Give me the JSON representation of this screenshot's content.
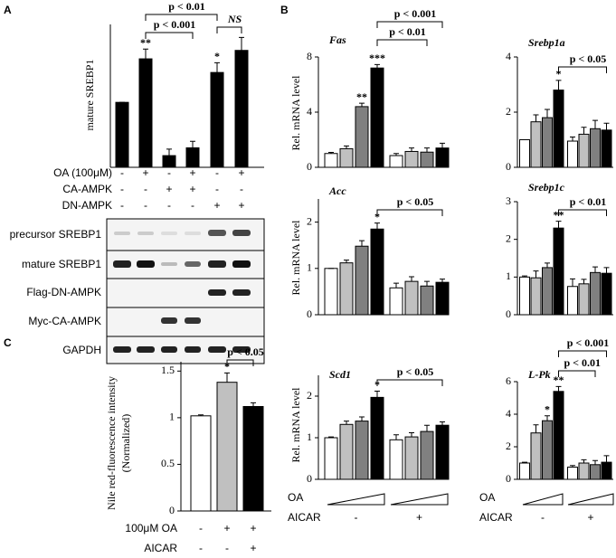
{
  "chart_data": [
    {
      "panel": "A",
      "type": "bar",
      "y_label": "mature SREBP1",
      "categories": [
        null,
        null,
        null,
        null,
        null,
        null
      ],
      "values": [
        1,
        1.67,
        0.18,
        0.3,
        1.46,
        1.8
      ],
      "errors": [
        0,
        0.15,
        0.1,
        0.1,
        0.15,
        0.2
      ],
      "color": "#000000",
      "ylim": [
        0,
        2.2
      ],
      "annotations": [
        "**",
        "*",
        "p < 0.001",
        "p < 0.01",
        "NS"
      ],
      "treatments": [
        {
          "label": "OA (100μM)",
          "signs": [
            "-",
            "+",
            "-",
            "+",
            "-",
            "+"
          ]
        },
        {
          "label": "CA-AMPK",
          "signs": [
            "-",
            "-",
            "+",
            "+",
            "-",
            "-"
          ]
        },
        {
          "label": "DN-AMPK",
          "signs": [
            "-",
            "-",
            "-",
            "-",
            "+",
            "+"
          ]
        }
      ],
      "blot_labels": [
        "precursor SREBP1",
        "mature SREBP1",
        "Flag-DN-AMPK",
        "Myc-CA-AMPK",
        "GAPDH"
      ]
    },
    {
      "panel": "B",
      "type": "bar",
      "title": "Fas",
      "y_label": "Rel. mRNA level",
      "categories": [
        null,
        null,
        null,
        null,
        null,
        null,
        null,
        null
      ],
      "values": [
        1,
        1.35,
        4.4,
        7.2,
        0.85,
        1.15,
        1.1,
        1.4
      ],
      "errors": [
        0.08,
        0.2,
        0.25,
        0.25,
        0.15,
        0.25,
        0.3,
        0.35
      ],
      "colors": [
        "#ffffff",
        "#c0c0c0",
        "#808080",
        "#000000",
        "#ffffff",
        "#c0c0c0",
        "#808080",
        "#000000"
      ],
      "ylim": [
        0,
        8
      ],
      "yticks": [
        0,
        4,
        8
      ],
      "annotations": [
        "**",
        "***",
        "p < 0.01",
        "p < 0.001"
      ]
    },
    {
      "type": "bar",
      "title": "Srebp1a",
      "categories": [
        null,
        null,
        null,
        null,
        null,
        null,
        null,
        null
      ],
      "values": [
        1,
        1.65,
        1.8,
        2.8,
        0.95,
        1.2,
        1.4,
        1.35
      ],
      "errors": [
        0,
        0.25,
        0.3,
        0.35,
        0.15,
        0.25,
        0.3,
        0.25
      ],
      "colors": [
        "#ffffff",
        "#c0c0c0",
        "#808080",
        "#000000",
        "#ffffff",
        "#c0c0c0",
        "#808080",
        "#000000"
      ],
      "ylim": [
        0,
        4
      ],
      "yticks": [
        0,
        2,
        4
      ],
      "annotations": [
        "*",
        "p < 0.05"
      ]
    },
    {
      "type": "bar",
      "title": "Acc",
      "y_label": "Rel. mRNA level",
      "categories": [
        null,
        null,
        null,
        null,
        null,
        null,
        null,
        null
      ],
      "values": [
        1,
        1.12,
        1.48,
        1.85,
        0.58,
        0.72,
        0.62,
        0.7
      ],
      "errors": [
        0,
        0.06,
        0.12,
        0.13,
        0.1,
        0.1,
        0.1,
        0.07
      ],
      "colors": [
        "#ffffff",
        "#c0c0c0",
        "#808080",
        "#000000",
        "#ffffff",
        "#c0c0c0",
        "#808080",
        "#000000"
      ],
      "ylim": [
        0,
        2.5
      ],
      "yticks": [
        0,
        1,
        2
      ],
      "annotations": [
        "*",
        "p < 0.05"
      ]
    },
    {
      "type": "bar",
      "title": "Srebp1c",
      "categories": [
        null,
        null,
        null,
        null,
        null,
        null,
        null,
        null
      ],
      "values": [
        1,
        0.98,
        1.25,
        2.3,
        0.75,
        0.82,
        1.12,
        1.1
      ],
      "errors": [
        0.03,
        0.18,
        0.12,
        0.18,
        0.2,
        0.12,
        0.15,
        0.15
      ],
      "colors": [
        "#ffffff",
        "#c0c0c0",
        "#808080",
        "#000000",
        "#ffffff",
        "#c0c0c0",
        "#808080",
        "#000000"
      ],
      "ylim": [
        0,
        3
      ],
      "yticks": [
        0,
        1,
        2,
        3
      ],
      "annotations": [
        "**",
        "p < 0.01"
      ]
    },
    {
      "type": "bar",
      "title": "Scd1",
      "y_label": "Rel. mRNA level",
      "categories": [
        null,
        null,
        null,
        null,
        null,
        null,
        null,
        null
      ],
      "values": [
        1,
        1.32,
        1.4,
        1.97,
        0.95,
        1.02,
        1.15,
        1.3
      ],
      "errors": [
        0.02,
        0.08,
        0.1,
        0.15,
        0.12,
        0.1,
        0.15,
        0.08
      ],
      "colors": [
        "#ffffff",
        "#c0c0c0",
        "#808080",
        "#000000",
        "#ffffff",
        "#c0c0c0",
        "#808080",
        "#000000"
      ],
      "ylim": [
        0,
        2.5
      ],
      "yticks": [
        0,
        1,
        2
      ],
      "annotations": [
        "*",
        "p < 0.05"
      ],
      "treatment_labels": [
        "OA",
        "AICAR"
      ],
      "group_labels": [
        "-",
        "+"
      ]
    },
    {
      "type": "bar",
      "title": "L-Pk",
      "categories": [
        null,
        null,
        null,
        null,
        null,
        null,
        null,
        null
      ],
      "values": [
        1,
        2.85,
        3.6,
        5.4,
        0.75,
        1.0,
        0.9,
        1.05
      ],
      "errors": [
        0.05,
        0.5,
        0.3,
        0.3,
        0.1,
        0.2,
        0.25,
        0.4
      ],
      "colors": [
        "#ffffff",
        "#c0c0c0",
        "#808080",
        "#000000",
        "#ffffff",
        "#c0c0c0",
        "#808080",
        "#000000"
      ],
      "ylim": [
        0,
        6
      ],
      "yticks": [
        0,
        2,
        4,
        6
      ],
      "annotations": [
        "*",
        "**",
        "p < 0.01",
        "p < 0.001"
      ],
      "treatment_labels": [
        "OA",
        "AICAR"
      ],
      "group_labels": [
        "-",
        "+"
      ]
    },
    {
      "panel": "C",
      "type": "bar",
      "y_label": [
        "Nile red-fluorescence intensity",
        "(Normalized)"
      ],
      "categories": [
        null,
        null,
        null
      ],
      "values": [
        1.02,
        1.38,
        1.12
      ],
      "errors": [
        0.01,
        0.1,
        0.04
      ],
      "colors": [
        "#ffffff",
        "#c0c0c0",
        "#000000"
      ],
      "ylim": [
        0,
        1.6
      ],
      "yticks": [
        0,
        0.5,
        1,
        1.5
      ],
      "annotations": [
        "*",
        "p < 0.05"
      ],
      "treatments": [
        {
          "label": "100μM OA",
          "signs": [
            "-",
            "+",
            "+"
          ]
        },
        {
          "label": "AICAR",
          "signs": [
            "-",
            "-",
            "+"
          ]
        }
      ]
    }
  ]
}
